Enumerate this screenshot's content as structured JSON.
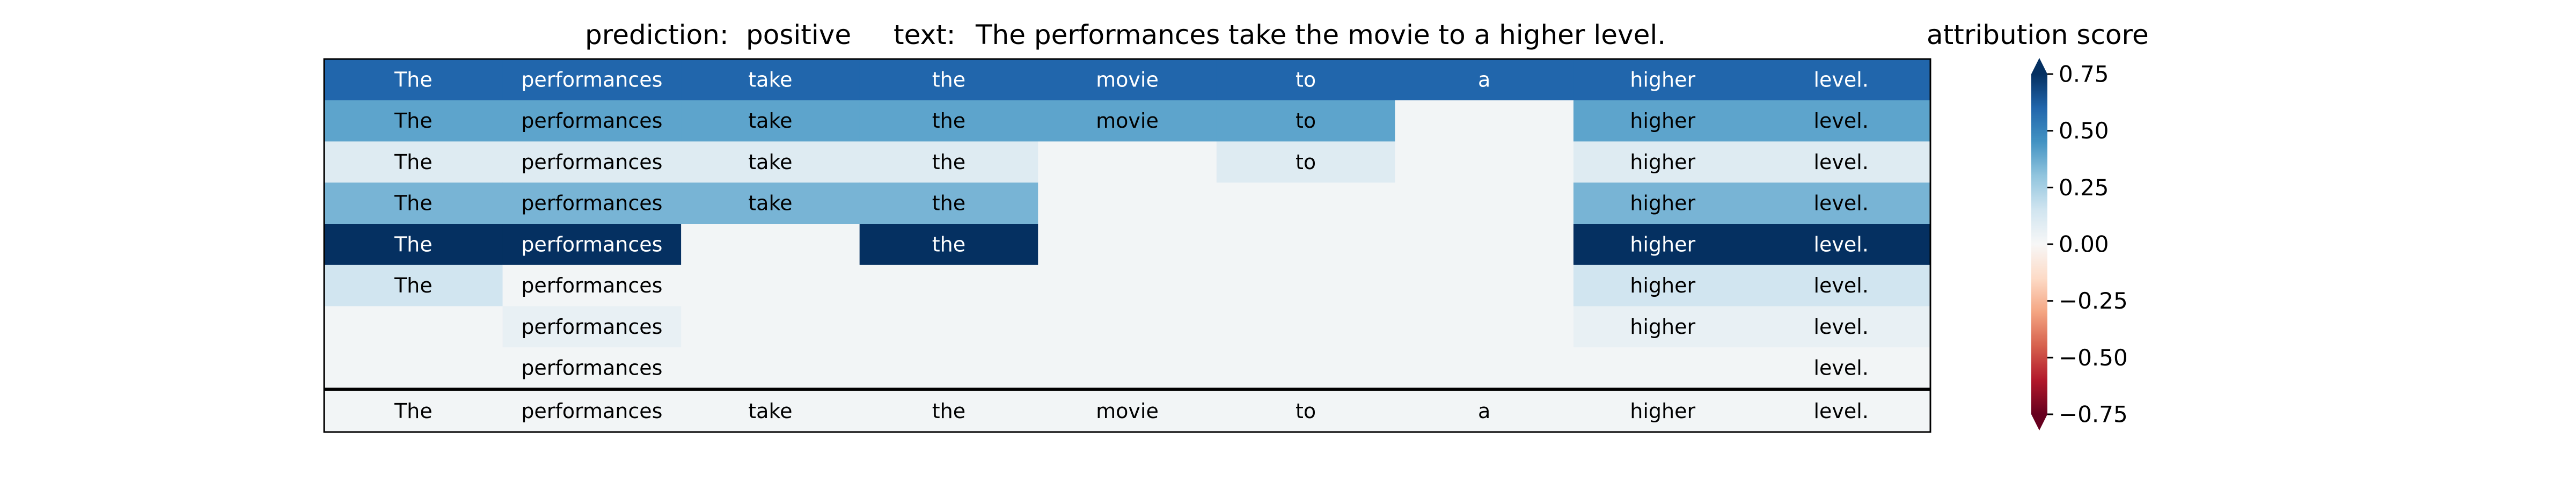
{
  "header": {
    "prediction_label": "prediction:",
    "prediction_value": "positive",
    "text_label": "text:",
    "text_value": "The performances take the movie to a higher level."
  },
  "colorbar": {
    "title": "attribution score",
    "ticks": [
      0.75,
      0.5,
      0.25,
      0.0,
      -0.25,
      -0.5,
      -0.75
    ],
    "tick_labels": [
      "0.75",
      "0.50",
      "0.25",
      "0.00",
      "−0.25",
      "−0.50",
      "−0.75"
    ],
    "range": [
      -0.75,
      0.75
    ],
    "colormap": "RdBu",
    "extend": "both"
  },
  "chart_data": {
    "type": "heatmap",
    "tokens": [
      "The",
      "performances",
      "take",
      "the",
      "movie",
      "to",
      "a",
      "higher",
      "level."
    ],
    "rows": [
      {
        "words": [
          "The",
          "performances",
          "take",
          "the",
          "movie",
          "to",
          "a",
          "higher",
          "level."
        ],
        "scores": [
          0.6,
          0.6,
          0.6,
          0.6,
          0.6,
          0.6,
          0.6,
          0.6,
          0.6
        ]
      },
      {
        "words": [
          "The",
          "performances",
          "take",
          "the",
          "movie",
          "to",
          "",
          "higher",
          "level."
        ],
        "scores": [
          0.4,
          0.4,
          0.4,
          0.4,
          0.4,
          0.4,
          0.02,
          0.4,
          0.4
        ]
      },
      {
        "words": [
          "The",
          "performances",
          "take",
          "the",
          "",
          "to",
          "",
          "higher",
          "level."
        ],
        "scores": [
          0.1,
          0.1,
          0.1,
          0.1,
          0.02,
          0.1,
          0.02,
          0.1,
          0.1
        ]
      },
      {
        "words": [
          "The",
          "performances",
          "take",
          "the",
          "",
          "",
          "",
          "higher",
          "level."
        ],
        "scores": [
          0.35,
          0.35,
          0.35,
          0.35,
          0.02,
          0.02,
          0.02,
          0.35,
          0.35
        ]
      },
      {
        "words": [
          "The",
          "performances",
          "",
          "the",
          "",
          "",
          "",
          "higher",
          "level."
        ],
        "scores": [
          0.85,
          0.85,
          0.02,
          0.85,
          0.02,
          0.02,
          0.02,
          0.85,
          0.85
        ]
      },
      {
        "words": [
          "The",
          "performances",
          "",
          "",
          "",
          "",
          "",
          "higher",
          "level."
        ],
        "scores": [
          0.15,
          0.02,
          0.02,
          0.02,
          0.02,
          0.02,
          0.02,
          0.15,
          0.15
        ]
      },
      {
        "words": [
          "",
          "performances",
          "",
          "",
          "",
          "",
          "",
          "higher",
          "level."
        ],
        "scores": [
          0.02,
          0.06,
          0.02,
          0.02,
          0.02,
          0.02,
          0.02,
          0.06,
          0.06
        ]
      },
      {
        "words": [
          "",
          "performances",
          "",
          "",
          "",
          "",
          "",
          "",
          "level."
        ],
        "scores": [
          0.02,
          0.02,
          0.02,
          0.02,
          0.02,
          0.02,
          0.02,
          0.02,
          0.02
        ]
      }
    ],
    "summary_row": {
      "words": [
        "The",
        "performances",
        "take",
        "the",
        "movie",
        "to",
        "a",
        "higher",
        "level."
      ],
      "scores": [
        0.02,
        0.02,
        0.02,
        0.02,
        0.02,
        0.02,
        0.02,
        0.02,
        0.02
      ]
    }
  }
}
